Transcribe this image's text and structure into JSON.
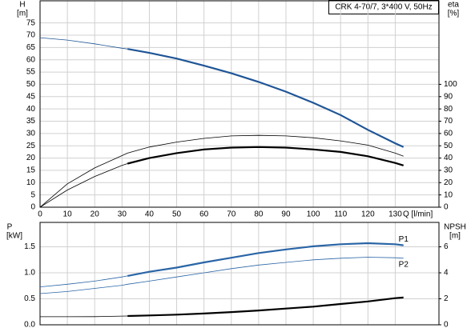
{
  "chart_data": [
    {
      "type": "line",
      "title": "CRK 4-70/7, 3*400 V, 50Hz",
      "ylabel": "H",
      "yunit": "[m]",
      "y2label": "eta",
      "y2unit": "[%]",
      "xlabel": "Q [l/min]",
      "x": [
        0,
        10,
        20,
        30,
        32,
        40,
        50,
        60,
        70,
        80,
        90,
        100,
        110,
        120,
        130,
        133
      ],
      "xlim": [
        0,
        146
      ],
      "xticks": [
        0,
        10,
        20,
        30,
        40,
        50,
        60,
        70,
        80,
        90,
        100,
        110,
        120,
        130
      ],
      "ylim": [
        0,
        84
      ],
      "yticks": [
        0,
        5,
        10,
        15,
        20,
        25,
        30,
        35,
        40,
        45,
        50,
        55,
        60,
        65,
        70,
        75
      ],
      "y2lim": [
        0,
        168
      ],
      "y2ticks": [
        0,
        10,
        20,
        30,
        40,
        50,
        60,
        70,
        80,
        90,
        100
      ],
      "grid": true,
      "bold_from_x": 32,
      "series": [
        {
          "color": "#1f5596",
          "bold": true,
          "values": [
            69,
            68,
            66.5,
            64.7,
            64.4,
            62.8,
            60.5,
            57.6,
            54.5,
            51,
            47,
            42.5,
            37.5,
            31.5,
            26,
            24.5
          ]
        },
        {
          "color": "#000000",
          "bold": false,
          "axis": "y2",
          "values": [
            0,
            19,
            32,
            42,
            44,
            49,
            53,
            56,
            58,
            58.5,
            58,
            56.5,
            54,
            50.5,
            44,
            41.5
          ]
        },
        {
          "color": "#000000",
          "bold": true,
          "axis": "y2",
          "values": [
            0,
            14,
            25,
            34,
            35.5,
            40,
            44,
            47,
            48.5,
            49,
            48.5,
            47,
            45,
            41.5,
            36,
            34
          ]
        }
      ]
    },
    {
      "type": "line",
      "ylabel": "P",
      "yunit": "[kW]",
      "y2label": "NPSH",
      "y2unit": "[m]",
      "x": [
        0,
        10,
        20,
        30,
        32,
        40,
        50,
        60,
        70,
        80,
        90,
        100,
        110,
        120,
        130,
        133
      ],
      "xlim": [
        0,
        146
      ],
      "ylim": [
        0,
        1.97
      ],
      "yticks": [
        {
          "value": 0,
          "label": "0.0"
        },
        0.5,
        {
          "value": 1,
          "label": "1.0"
        },
        1.5
      ],
      "y2lim": [
        0,
        7.88
      ],
      "y2ticks": [
        0,
        2,
        4,
        6
      ],
      "grid": true,
      "bold_from_x": 32,
      "series": [
        {
          "name": "P1",
          "color": "#2a65a6",
          "bold": true,
          "values": [
            0.73,
            0.78,
            0.84,
            0.92,
            0.94,
            1.02,
            1.1,
            1.2,
            1.29,
            1.38,
            1.45,
            1.51,
            1.55,
            1.57,
            1.55,
            1.53
          ]
        },
        {
          "name": "P2",
          "color": "#2a65a6",
          "bold": false,
          "values": [
            0.6,
            0.64,
            0.7,
            0.76,
            0.78,
            0.84,
            0.92,
            1.0,
            1.08,
            1.15,
            1.2,
            1.25,
            1.28,
            1.3,
            1.29,
            1.28
          ]
        },
        {
          "color": "#000000",
          "bold": true,
          "axis": "y2",
          "values": [
            0.62,
            0.62,
            0.63,
            0.67,
            0.68,
            0.72,
            0.78,
            0.87,
            0.98,
            1.1,
            1.25,
            1.4,
            1.6,
            1.8,
            2.05,
            2.1
          ]
        }
      ]
    }
  ]
}
